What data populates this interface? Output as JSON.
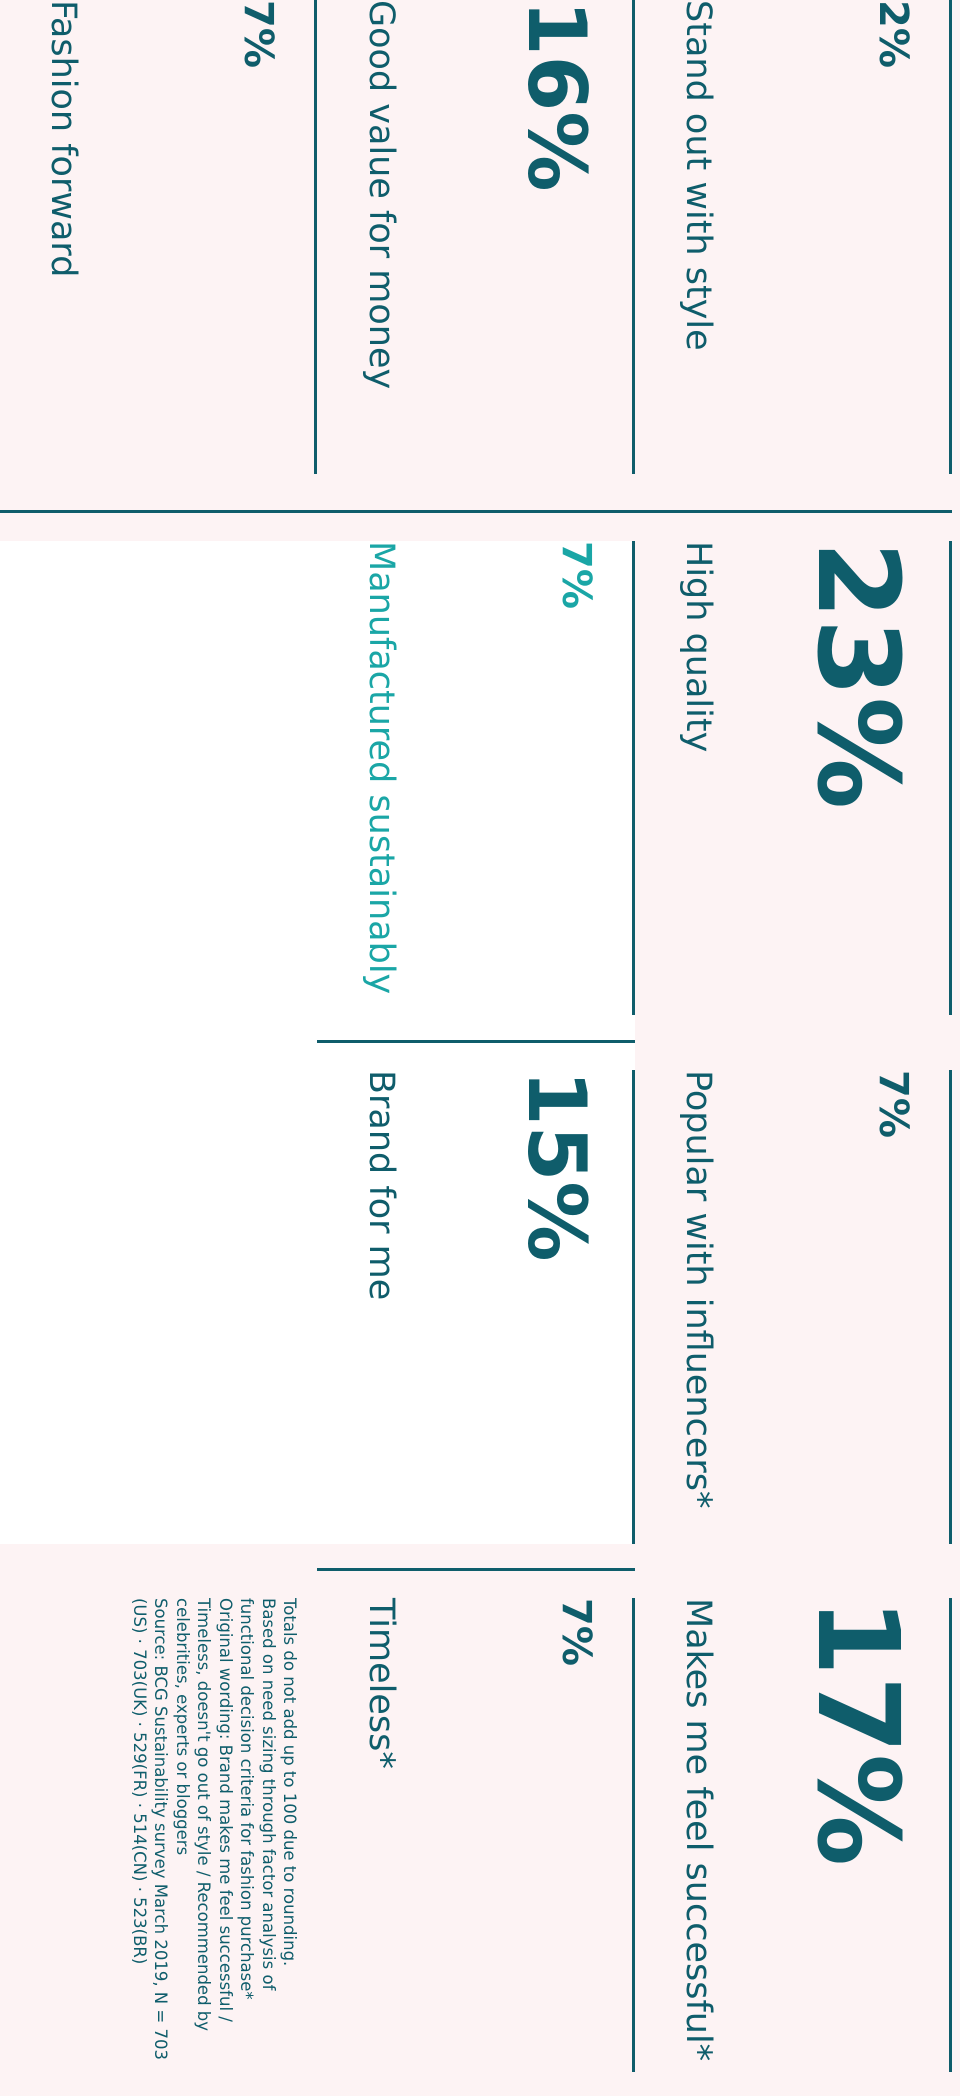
{
  "cells": [
    {
      "value": "2%",
      "label": "Stand out with style"
    },
    {
      "value": "23%",
      "label": "High quality"
    },
    {
      "value": "7%",
      "label": "Popular with influencers*"
    },
    {
      "value": "17%",
      "label": "Makes me feel successful*"
    },
    {
      "value": "16%",
      "label": "Good value for money"
    },
    {
      "value": "7%",
      "label": "Manufactured sustainably"
    },
    {
      "value": "15%",
      "label": "Brand for me"
    },
    {
      "value": "7%",
      "label": "Timeless*"
    },
    {
      "value": "7%",
      "label": "Fashion forward"
    }
  ],
  "footnotes": [
    "Totals do not add up to 100 due to rounding.",
    "Based on need sizing through factor analysis of functional decision criteria for fashion purchase*",
    "Original wording: Brand makes me feel successful / Timeless, doesn't go out of style / Recommended by celebrities, experts or bloggers",
    "Source: BCG Sustainability survey March 2019, N = 703 (US) · 703(UK) · 529(FR) · 514(CN) · 523(BR)"
  ]
}
